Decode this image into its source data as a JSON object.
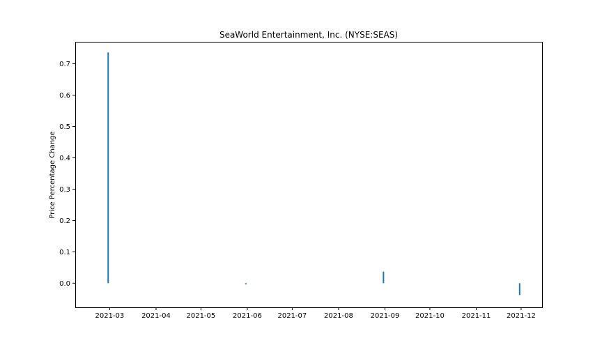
{
  "chart_data": {
    "type": "bar",
    "title": "SeaWorld Entertainment, Inc. (NYSE:SEAS)",
    "xlabel": "",
    "ylabel": "Price Percentage Change",
    "ylim": [
      -0.077,
      0.77
    ],
    "xlim": [
      "2021-02-06",
      "2021-12-15"
    ],
    "grid": false,
    "x_ticks": [
      "2021-03",
      "2021-04",
      "2021-05",
      "2021-06",
      "2021-07",
      "2021-08",
      "2021-09",
      "2021-10",
      "2021-11",
      "2021-12"
    ],
    "y_ticks": [
      "0.0",
      "0.1",
      "0.2",
      "0.3",
      "0.4",
      "0.5",
      "0.6",
      "0.7"
    ],
    "y_tick_values": [
      0.0,
      0.1,
      0.2,
      0.3,
      0.4,
      0.5,
      0.6,
      0.7
    ],
    "series": [
      {
        "color": "#1f77b4",
        "points": [
          {
            "date": "2021-02-28",
            "value": 0.736
          },
          {
            "date": "2021-05-31",
            "value": -0.004
          },
          {
            "date": "2021-08-31",
            "value": 0.037
          },
          {
            "date": "2021-11-30",
            "value": -0.038
          }
        ]
      }
    ]
  }
}
